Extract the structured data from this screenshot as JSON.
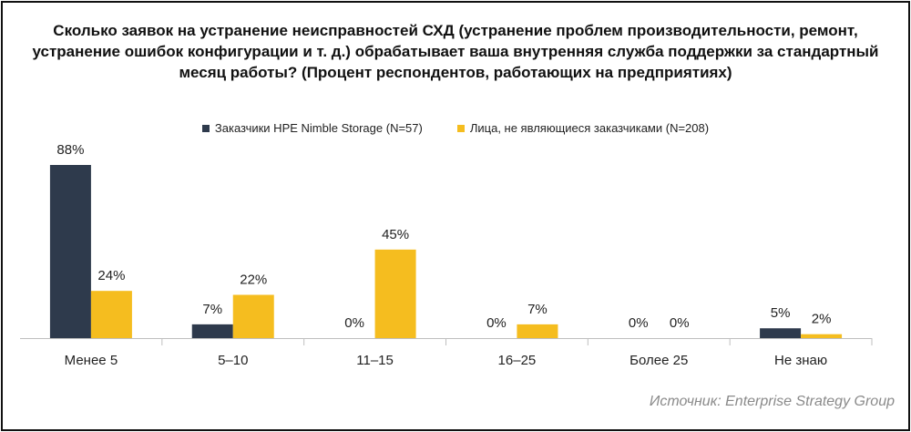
{
  "title": "Сколько заявок на устранение неисправностей СХД (устранение проблем производительности, ремонт, устранение ошибок конфигурации и т. д.) обрабатывает ваша внутренняя служба поддержки за стандартный месяц работы? (Процент респондентов, работающих на предприятиях)",
  "source": "Источник: Enterprise Strategy Group",
  "colors": {
    "series1": "#2e3a4c",
    "series2": "#f5bd1f"
  },
  "chart_data": {
    "type": "bar",
    "title": "Сколько заявок на устранение неисправностей СХД (устранение проблем производительности, ремонт, устранение ошибок конфигурации и т. д.) обрабатывает ваша внутренняя служба поддержки за стандартный месяц работы? (Процент респондентов, работающих на предприятиях)",
    "categories": [
      "Менее 5",
      "5–10",
      "11–15",
      "16–25",
      "Более 25",
      "Не знаю"
    ],
    "series": [
      {
        "name": "Заказчики HPE Nimble Storage (N=57)",
        "values": [
          88,
          7,
          0,
          0,
          0,
          5
        ],
        "labels": [
          "88%",
          "7%",
          "0%",
          "0%",
          "0%",
          "5%"
        ]
      },
      {
        "name": "Лица, не являющиеся заказчиками (N=208)",
        "values": [
          24,
          22,
          45,
          7,
          0,
          2
        ],
        "labels": [
          "24%",
          "22%",
          "45%",
          "7%",
          "0%",
          "2%"
        ]
      }
    ],
    "xlabel": "",
    "ylabel": "",
    "ylim": [
      0,
      88
    ],
    "grid": false,
    "legend_position": "top-center"
  }
}
